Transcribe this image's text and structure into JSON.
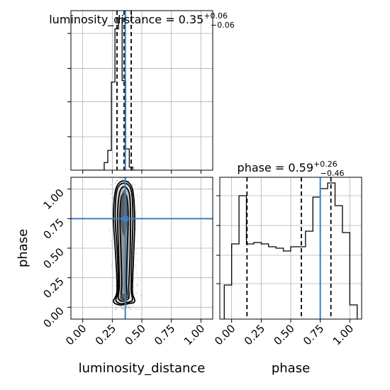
{
  "chart_data": [
    {
      "type": "histogram",
      "panel": "top-left",
      "param": "luminosity_distance",
      "title": {
        "label": "luminosity_distance = 0.35",
        "upper": "+0.06",
        "lower": "−0.06"
      },
      "bin_edges": [
        0.0,
        0.0303,
        0.0606,
        0.0909,
        0.1212,
        0.1515,
        0.1818,
        0.2121,
        0.2424,
        0.2727,
        0.303,
        0.3333,
        0.3636,
        0.3939,
        0.4242,
        0.4545,
        0.4848,
        0.5152
      ],
      "counts": [
        0,
        0,
        0,
        0,
        0,
        0,
        0.05,
        0.13,
        0.58,
        0.93,
        1.0,
        0.59,
        0.14,
        0.02,
        0,
        0,
        0
      ],
      "quantile_lines": [
        0.29,
        0.35,
        0.41
      ],
      "truth": 0.36,
      "xlim": [
        -0.1,
        1.1
      ],
      "ylim": [
        0,
        1.05
      ],
      "grid": true
    },
    {
      "type": "histogram",
      "panel": "bottom-right",
      "param": "phase",
      "title": {
        "label": "phase = 0.59",
        "upper": "+0.26",
        "lower": "−0.46"
      },
      "bin_edges": [
        -0.0625,
        0.0,
        0.0625,
        0.125,
        0.1875,
        0.25,
        0.3125,
        0.375,
        0.4375,
        0.5,
        0.5625,
        0.625,
        0.6875,
        0.75,
        0.8125,
        0.875,
        0.9375,
        1.0,
        1.0625
      ],
      "counts": [
        0.24,
        0.53,
        0.87,
        0.53,
        0.54,
        0.53,
        0.51,
        0.5,
        0.48,
        0.51,
        0.51,
        0.62,
        0.86,
        0.92,
        0.96,
        0.8,
        0.61,
        0.1
      ],
      "quantile_lines": [
        0.13,
        0.59,
        0.84
      ],
      "truth": 0.75,
      "xlim": [
        -0.1,
        1.1
      ],
      "ylim": [
        0,
        1.0
      ],
      "ytick_values": [
        0.25,
        0.45,
        0.66,
        0.87
      ],
      "grid": true
    },
    {
      "type": "contour-2d",
      "panel": "bottom-left",
      "x_param": "luminosity_distance",
      "y_param": "phase",
      "xlabel": "luminosity_distance",
      "ylabel": "phase",
      "xlim": [
        -0.1,
        1.1
      ],
      "ylim": [
        -0.1,
        1.1
      ],
      "xticks": [
        "0.00",
        "0.25",
        "0.50",
        "0.75",
        "1.00"
      ],
      "yticks": [
        "0.00",
        "0.25",
        "0.50",
        "0.75",
        "1.00"
      ],
      "xtick_values": [
        0,
        0.25,
        0.5,
        0.75,
        1.0
      ],
      "ytick_values": [
        0,
        0.25,
        0.5,
        0.75,
        1.0
      ],
      "truth": {
        "x": 0.36,
        "y": 0.75
      },
      "grid": true,
      "contours": [
        [
          [
            0.38,
            0.03
          ],
          [
            0.44,
            0.05
          ],
          [
            0.42,
            0.14
          ],
          [
            0.43,
            0.42
          ],
          [
            0.44,
            0.75
          ],
          [
            0.42,
            1.0
          ],
          [
            0.35,
            1.07
          ],
          [
            0.28,
            1.0
          ],
          [
            0.26,
            0.75
          ],
          [
            0.28,
            0.42
          ],
          [
            0.29,
            0.14
          ],
          [
            0.26,
            0.05
          ],
          [
            0.31,
            0.02
          ]
        ],
        [
          [
            0.37,
            0.04
          ],
          [
            0.42,
            0.06
          ],
          [
            0.41,
            0.15
          ],
          [
            0.415,
            0.42
          ],
          [
            0.425,
            0.76
          ],
          [
            0.41,
            0.99
          ],
          [
            0.35,
            1.05
          ],
          [
            0.29,
            0.99
          ],
          [
            0.275,
            0.76
          ],
          [
            0.295,
            0.42
          ],
          [
            0.3,
            0.15
          ],
          [
            0.28,
            0.06
          ],
          [
            0.32,
            0.03
          ]
        ],
        [
          [
            0.36,
            0.06
          ],
          [
            0.39,
            0.08
          ],
          [
            0.39,
            0.18
          ],
          [
            0.4,
            0.42
          ],
          [
            0.405,
            0.76
          ],
          [
            0.395,
            0.96
          ],
          [
            0.35,
            1.02
          ],
          [
            0.31,
            0.96
          ],
          [
            0.295,
            0.76
          ],
          [
            0.305,
            0.42
          ],
          [
            0.31,
            0.18
          ],
          [
            0.3,
            0.08
          ],
          [
            0.33,
            0.05
          ]
        ],
        [
          [
            0.355,
            0.07
          ],
          [
            0.375,
            0.1
          ],
          [
            0.37,
            0.2
          ],
          [
            0.375,
            0.42
          ],
          [
            0.385,
            0.75
          ],
          [
            0.375,
            0.92
          ],
          [
            0.35,
            0.96
          ],
          [
            0.325,
            0.92
          ],
          [
            0.315,
            0.75
          ],
          [
            0.325,
            0.42
          ],
          [
            0.33,
            0.2
          ],
          [
            0.325,
            0.1
          ],
          [
            0.34,
            0.07
          ]
        ]
      ]
    }
  ]
}
